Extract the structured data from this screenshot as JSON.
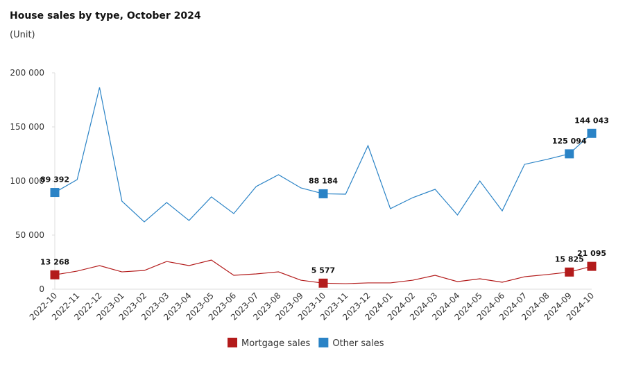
{
  "chart_data": {
    "type": "line",
    "title": "House sales by type, October 2024",
    "subtitle": "(Unit)",
    "categories": [
      "2022-10",
      "2022-11",
      "2022-12",
      "2023-01",
      "2023-02",
      "2023-03",
      "2023-04",
      "2023-05",
      "2023-06",
      "2023-07",
      "2023-08",
      "2023-09",
      "2023-10",
      "2023-11",
      "2023-12",
      "2024-01",
      "2024-02",
      "2024-03",
      "2024-04",
      "2024-05",
      "2024-06",
      "2024-07",
      "2024-08",
      "2024-09",
      "2024-10"
    ],
    "series": [
      {
        "name": "Mortgage sales",
        "color": "#b31b1b",
        "values": [
          13268,
          16700,
          21800,
          16000,
          17300,
          25600,
          21800,
          26900,
          12800,
          14100,
          16000,
          8300,
          5577,
          5100,
          5800,
          5800,
          8300,
          12800,
          7000,
          9600,
          6400,
          11500,
          13500,
          15825,
          21095
        ],
        "value_labels": [
          "13 268",
          null,
          null,
          null,
          null,
          null,
          null,
          null,
          null,
          null,
          null,
          null,
          "5 577",
          null,
          null,
          null,
          null,
          null,
          null,
          null,
          null,
          null,
          null,
          "15 825",
          "21 095"
        ]
      },
      {
        "name": "Other sales",
        "color": "#2a83c6",
        "values": [
          89392,
          101300,
          186500,
          81400,
          62200,
          80100,
          63500,
          85300,
          69900,
          94900,
          105800,
          93600,
          88184,
          87800,
          132700,
          74400,
          84600,
          92300,
          68600,
          100000,
          72400,
          115400,
          120000,
          125094,
          144043
        ],
        "value_labels": [
          "89 392",
          null,
          null,
          null,
          null,
          null,
          null,
          null,
          null,
          null,
          null,
          null,
          "88 184",
          null,
          null,
          null,
          null,
          null,
          null,
          null,
          null,
          null,
          null,
          "125 094",
          "144 043"
        ]
      }
    ],
    "ylim": [
      0,
      200000
    ],
    "yticks": [
      0,
      {
        "value": 50000,
        "label": "50 000"
      },
      {
        "value": 100000,
        "label": "100 000"
      },
      {
        "value": 150000,
        "label": "150 000"
      },
      {
        "value": 200000,
        "label": "200 000"
      }
    ],
    "legend": "bottom"
  }
}
